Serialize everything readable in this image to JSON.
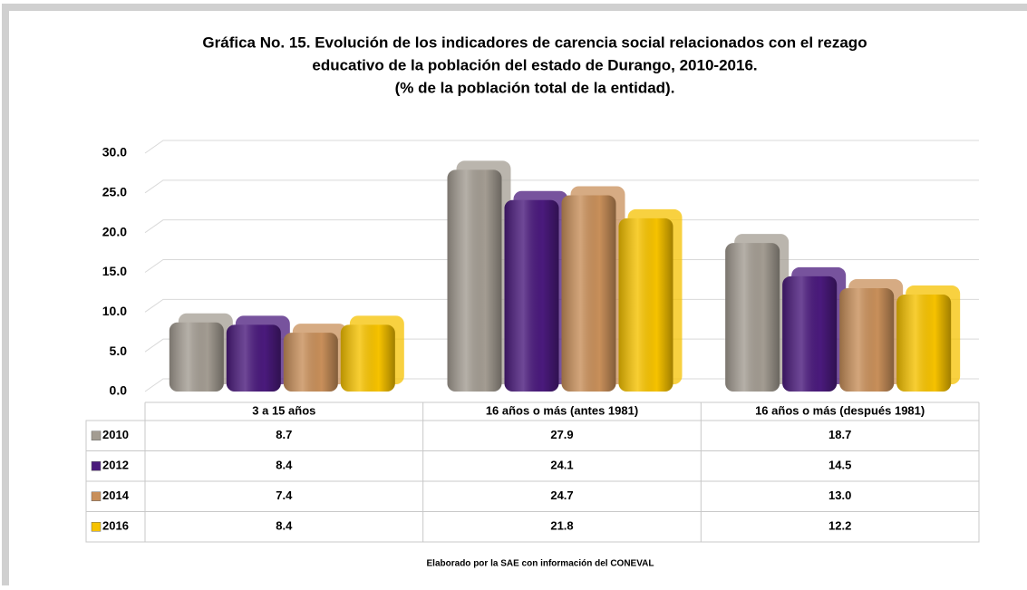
{
  "chart_data": {
    "type": "bar",
    "title": [
      "Gráfica No. 15. Evolución de los indicadores de carencia social relacionados con el rezago",
      "educativo de la población del estado de Durango, 2010-2016.",
      "(% de la población total de la entidad)."
    ],
    "categories": [
      "3 a 15 años",
      "16 años o más (antes 1981)",
      "16 años o más (después 1981)"
    ],
    "series": [
      {
        "name": "2010",
        "color": "#a39c92",
        "values": [
          8.7,
          27.9,
          18.7
        ]
      },
      {
        "name": "2012",
        "color": "#4a1a7c",
        "values": [
          8.4,
          24.1,
          14.5
        ]
      },
      {
        "name": "2014",
        "color": "#c88f5a",
        "values": [
          7.4,
          24.7,
          13.0
        ],
        "value_labels": [
          "7.4",
          "24.7",
          "13.0"
        ]
      },
      {
        "name": "2016",
        "color": "#f6c200",
        "values": [
          8.4,
          21.8,
          12.2
        ]
      }
    ],
    "ylim": [
      0,
      30
    ],
    "yticks": [
      {
        "value": 0,
        "label": "0.0"
      },
      {
        "value": 5,
        "label": "5.0"
      },
      {
        "value": 10,
        "label": "10.0"
      },
      {
        "value": 15,
        "label": "15.0"
      },
      {
        "value": 20,
        "label": "20.0"
      },
      {
        "value": 25,
        "label": "25.0"
      },
      {
        "value": 30,
        "label": "30.0"
      }
    ],
    "grid": true,
    "source": "Elaborado por la SAE con información del CONEVAL"
  }
}
